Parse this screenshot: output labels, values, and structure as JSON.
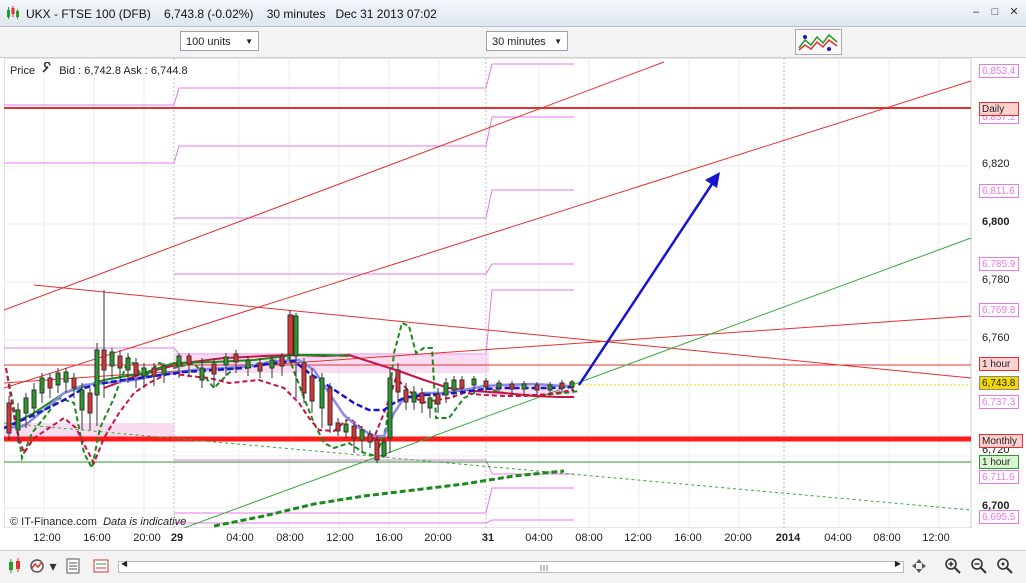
{
  "window": {
    "title": "UKX - FTSE 100 (DFB)    6,743.8 (-0.02%)    30 minutes   Dec 31 2013 07:02",
    "minimize": "–",
    "maximize": "□",
    "close": "✕"
  },
  "toolbar": {
    "units_value": "100 units",
    "interval_value": "30 minutes",
    "indicator_icon": "indicator-chart-icon"
  },
  "chart": {
    "price_label": "Price",
    "bid_ask": "Bid : 6,742.8  Ask : 6,744.8",
    "copyright": "© IT-Finance.com",
    "indicative": "Data is indicative",
    "wrench_icon": "wrench-icon",
    "colors": {
      "red": "#e53030",
      "pink": "#e879e8",
      "green": "#2a9a2a",
      "blue": "#1515d0",
      "lightblue": "#8b8ae6",
      "crimson": "#cc1144",
      "current": "#f5d800"
    }
  },
  "price_axis": {
    "ticks": [
      "6,820",
      "6,800",
      "6,780",
      "6,760",
      "6,720",
      "6,700"
    ],
    "pink_labels": [
      "6,853.4",
      "6,837.2",
      "6,811.6",
      "6,785.9",
      "6,769.8",
      "6,737.3",
      "6,711.6",
      "6,695.5"
    ],
    "daily": "Daily",
    "one_hour_top": "1 hour",
    "current": "6,743.8",
    "monthly": "Monthly",
    "one_hour_bottom": "1 hour"
  },
  "time_axis": {
    "labels": [
      "12:00",
      "16:00",
      "20:00",
      "29",
      "04:00",
      "08:00",
      "12:00",
      "16:00",
      "20:00",
      "31",
      "04:00",
      "08:00",
      "12:00",
      "16:00",
      "20:00",
      "2014",
      "04:00",
      "08:00",
      "12:00"
    ]
  },
  "bottom_toolbar": {
    "icons": [
      "candles-icon",
      "indicators-icon",
      "drawing-tools-icon",
      "template-icon",
      "scroll-left-icon",
      "scroll-right-icon",
      "zoom-in-icon",
      "zoom-out-icon",
      "zoom-reset-icon"
    ],
    "scroll_left": "◀",
    "scroll_right": "▶"
  }
}
